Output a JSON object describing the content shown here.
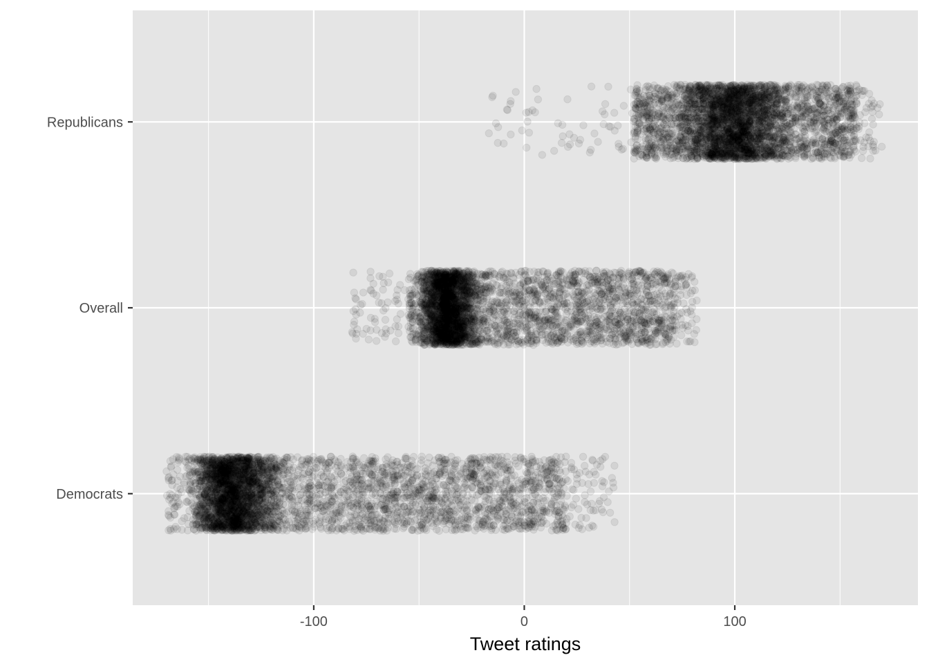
{
  "chart_data": {
    "type": "scatter",
    "title": "",
    "xlabel": "Tweet ratings",
    "ylabel": "",
    "xlim": [
      -186,
      187
    ],
    "x_ticks": [
      -100,
      0,
      100
    ],
    "x_tick_labels": [
      "-100",
      "0",
      "100"
    ],
    "x_minor_ticks": [
      -150,
      -50,
      50,
      150
    ],
    "categories": [
      "Democrats",
      "Overall",
      "Republicans"
    ],
    "grid": true,
    "legend": "none",
    "point_color": "#000000",
    "point_alpha": 0.08,
    "jitter_height": 0.2,
    "series": [
      {
        "category": "Republicans",
        "points_estimated": 4000,
        "min": -18,
        "max": 170,
        "core_min": 52,
        "core_max": 158,
        "dense_min": 72,
        "dense_max": 128,
        "peak": 98
      },
      {
        "category": "Overall",
        "points_estimated": 4000,
        "min": -82,
        "max": 82,
        "core_min": -55,
        "core_max": 72,
        "dense_min": -50,
        "dense_max": -20,
        "peak": -38
      },
      {
        "category": "Democrats",
        "points_estimated": 4500,
        "min": -170,
        "max": 43,
        "core_min": -160,
        "core_max": 20,
        "dense_min": -158,
        "dense_max": -115,
        "peak": -140
      }
    ]
  },
  "colors": {
    "panel": "#e5e5e5",
    "grid_major": "#ffffff",
    "tick_text": "#4d4d4d",
    "tick_mark": "#333333"
  }
}
